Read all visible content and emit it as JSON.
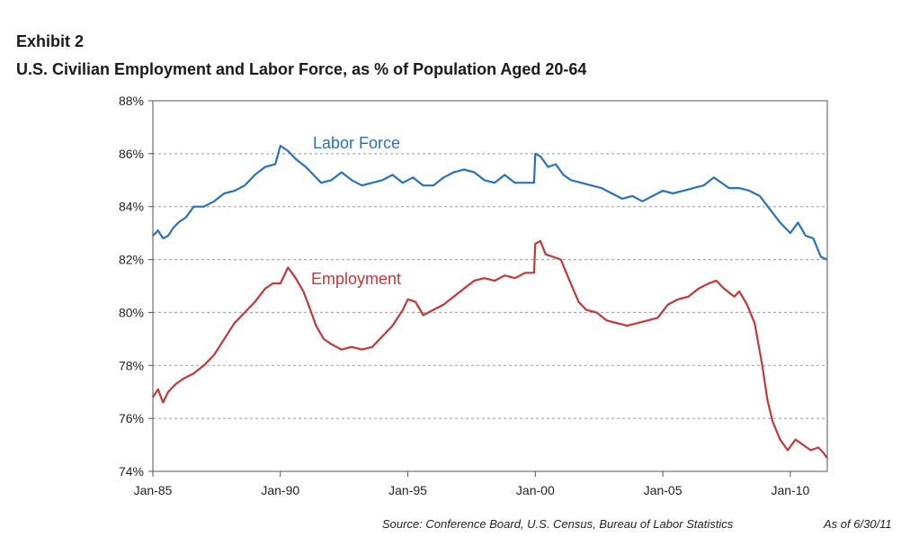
{
  "header": {
    "exhibit": "Exhibit 2",
    "title": "U.S. Civilian Employment and Labor Force, as % of Population Aged 20-64"
  },
  "footer": {
    "source": "Source:  Conference Board, U.S. Census, Bureau of Labor Statistics",
    "as_of": "As of 6/30/11"
  },
  "chart_data": {
    "type": "line",
    "title": "U.S. Civilian Employment and Labor Force, as % of Population Aged 20-64",
    "xlabel": "",
    "ylabel": "",
    "x_ticks": [
      "Jan-85",
      "Jan-90",
      "Jan-95",
      "Jan-00",
      "Jan-05",
      "Jan-10"
    ],
    "x_range": [
      1985.0,
      2011.45
    ],
    "ylim": [
      74,
      88
    ],
    "y_ticks": [
      "74%",
      "76%",
      "78%",
      "80%",
      "82%",
      "84%",
      "86%",
      "88%"
    ],
    "grid": "horizontal dashed",
    "series": [
      {
        "name": "Labor Force",
        "color": "#2a72b8",
        "x": [
          1985.0,
          1985.2,
          1985.4,
          1985.6,
          1985.8,
          1986.0,
          1986.3,
          1986.6,
          1987.0,
          1987.4,
          1987.8,
          1988.2,
          1988.6,
          1989.0,
          1989.4,
          1989.8,
          1990.0,
          1990.3,
          1990.6,
          1991.0,
          1991.3,
          1991.6,
          1992.0,
          1992.4,
          1992.8,
          1993.2,
          1993.6,
          1994.0,
          1994.4,
          1994.8,
          1995.2,
          1995.6,
          1996.0,
          1996.4,
          1996.8,
          1997.2,
          1997.6,
          1998.0,
          1998.4,
          1998.8,
          1999.2,
          1999.6,
          1999.95,
          2000.0,
          2000.2,
          2000.5,
          2000.8,
          2001.1,
          2001.4,
          2001.8,
          2002.2,
          2002.6,
          2003.0,
          2003.4,
          2003.8,
          2004.2,
          2004.6,
          2005.0,
          2005.4,
          2005.8,
          2006.2,
          2006.6,
          2007.0,
          2007.3,
          2007.6,
          2008.0,
          2008.4,
          2008.8,
          2009.2,
          2009.6,
          2010.0,
          2010.3,
          2010.6,
          2010.9,
          2011.2,
          2011.45
        ],
        "y": [
          82.9,
          83.1,
          82.8,
          82.9,
          83.2,
          83.4,
          83.6,
          84.0,
          84.0,
          84.2,
          84.5,
          84.6,
          84.8,
          85.2,
          85.5,
          85.6,
          86.3,
          86.1,
          85.8,
          85.5,
          85.2,
          84.9,
          85.0,
          85.3,
          85.0,
          84.8,
          84.9,
          85.0,
          85.2,
          84.9,
          85.1,
          84.8,
          84.8,
          85.1,
          85.3,
          85.4,
          85.3,
          85.0,
          84.9,
          85.2,
          84.9,
          84.9,
          84.9,
          86.0,
          85.9,
          85.5,
          85.6,
          85.2,
          85.0,
          84.9,
          84.8,
          84.7,
          84.5,
          84.3,
          84.4,
          84.2,
          84.4,
          84.6,
          84.5,
          84.6,
          84.7,
          84.8,
          85.1,
          84.9,
          84.7,
          84.7,
          84.6,
          84.4,
          83.9,
          83.4,
          83.0,
          83.4,
          82.9,
          82.8,
          82.1,
          82.0
        ]
      },
      {
        "name": "Employment",
        "color": "#c0393b",
        "x": [
          1985.0,
          1985.2,
          1985.4,
          1985.6,
          1985.9,
          1986.2,
          1986.6,
          1987.0,
          1987.4,
          1987.8,
          1988.2,
          1988.6,
          1989.0,
          1989.4,
          1989.7,
          1990.0,
          1990.3,
          1990.6,
          1990.9,
          1991.1,
          1991.4,
          1991.7,
          1992.0,
          1992.4,
          1992.8,
          1993.2,
          1993.6,
          1994.0,
          1994.4,
          1994.8,
          1995.0,
          1995.3,
          1995.6,
          1996.0,
          1996.4,
          1996.8,
          1997.2,
          1997.6,
          1998.0,
          1998.4,
          1998.8,
          1999.2,
          1999.6,
          1999.95,
          2000.0,
          2000.2,
          2000.4,
          2000.7,
          2001.0,
          2001.3,
          2001.7,
          2002.0,
          2002.4,
          2002.8,
          2003.2,
          2003.6,
          2004.0,
          2004.4,
          2004.8,
          2005.2,
          2005.6,
          2006.0,
          2006.4,
          2006.8,
          2007.1,
          2007.4,
          2007.8,
          2008.0,
          2008.3,
          2008.6,
          2008.9,
          2009.1,
          2009.3,
          2009.6,
          2009.9,
          2010.2,
          2010.5,
          2010.8,
          2011.1,
          2011.3,
          2011.45
        ],
        "y": [
          76.8,
          77.1,
          76.6,
          77.0,
          77.3,
          77.5,
          77.7,
          78.0,
          78.4,
          79.0,
          79.6,
          80.0,
          80.4,
          80.9,
          81.1,
          81.1,
          81.7,
          81.3,
          80.8,
          80.3,
          79.5,
          79.0,
          78.8,
          78.6,
          78.7,
          78.6,
          78.7,
          79.1,
          79.5,
          80.1,
          80.5,
          80.4,
          79.9,
          80.1,
          80.3,
          80.6,
          80.9,
          81.2,
          81.3,
          81.2,
          81.4,
          81.3,
          81.5,
          81.5,
          82.6,
          82.7,
          82.2,
          82.1,
          82.0,
          81.3,
          80.4,
          80.1,
          80.0,
          79.7,
          79.6,
          79.5,
          79.6,
          79.7,
          79.8,
          80.3,
          80.5,
          80.6,
          80.9,
          81.1,
          81.2,
          80.9,
          80.6,
          80.8,
          80.3,
          79.6,
          78.0,
          76.7,
          75.9,
          75.2,
          74.8,
          75.2,
          75.0,
          74.8,
          74.9,
          74.7,
          74.5
        ]
      }
    ]
  }
}
